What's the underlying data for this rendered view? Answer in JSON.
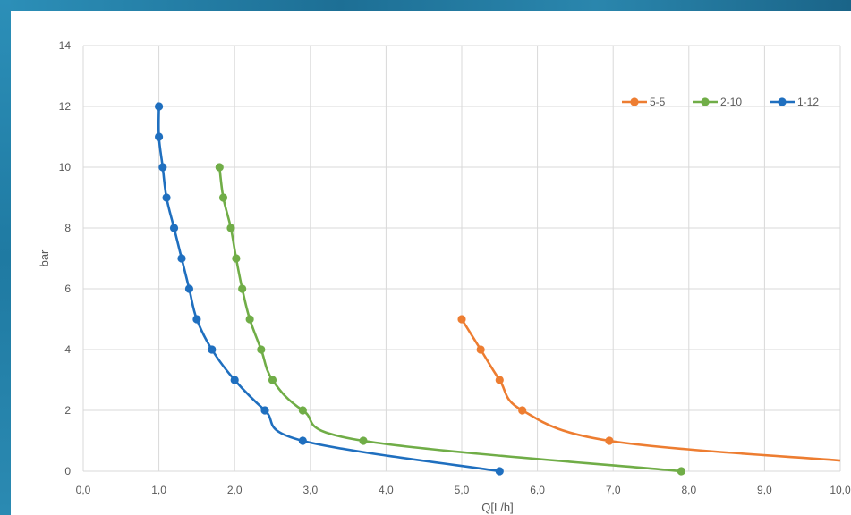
{
  "chart_data": {
    "type": "line",
    "xlabel": "Q[L/h]",
    "ylabel": "bar",
    "xlim": [
      0,
      10
    ],
    "ylim": [
      0,
      14
    ],
    "x_ticks": [
      "0,0",
      "1,0",
      "2,0",
      "3,0",
      "4,0",
      "5,0",
      "6,0",
      "7,0",
      "8,0",
      "9,0",
      "10,0"
    ],
    "y_ticks": [
      "0",
      "2",
      "4",
      "6",
      "8",
      "10",
      "12",
      "14"
    ],
    "grid": true,
    "legend_position": "top-right",
    "series": [
      {
        "name": "5-5",
        "color": "#ed7d31",
        "points": [
          [
            5.0,
            5
          ],
          [
            5.25,
            4
          ],
          [
            5.5,
            3
          ],
          [
            5.8,
            2
          ],
          [
            6.95,
            1
          ],
          [
            10.0,
            0.35
          ]
        ],
        "markers": [
          true,
          true,
          true,
          true,
          true,
          false
        ]
      },
      {
        "name": "2-10",
        "color": "#70ad47",
        "points": [
          [
            1.8,
            10
          ],
          [
            1.85,
            9
          ],
          [
            1.95,
            8
          ],
          [
            2.02,
            7
          ],
          [
            2.1,
            6
          ],
          [
            2.2,
            5
          ],
          [
            2.35,
            4
          ],
          [
            2.5,
            3
          ],
          [
            2.9,
            2
          ],
          [
            3.7,
            1
          ],
          [
            7.9,
            0
          ]
        ],
        "markers": [
          true,
          true,
          true,
          true,
          true,
          true,
          true,
          true,
          true,
          true,
          true
        ]
      },
      {
        "name": "1-12",
        "color": "#1f6fbf",
        "points": [
          [
            1.0,
            12
          ],
          [
            1.0,
            11
          ],
          [
            1.05,
            10
          ],
          [
            1.1,
            9
          ],
          [
            1.2,
            8
          ],
          [
            1.3,
            7
          ],
          [
            1.4,
            6
          ],
          [
            1.5,
            5
          ],
          [
            1.7,
            4
          ],
          [
            2.0,
            3
          ],
          [
            2.4,
            2
          ],
          [
            2.9,
            1
          ],
          [
            5.5,
            0
          ]
        ],
        "markers": [
          true,
          true,
          true,
          true,
          true,
          true,
          true,
          true,
          true,
          true,
          true,
          true,
          true
        ]
      }
    ]
  }
}
